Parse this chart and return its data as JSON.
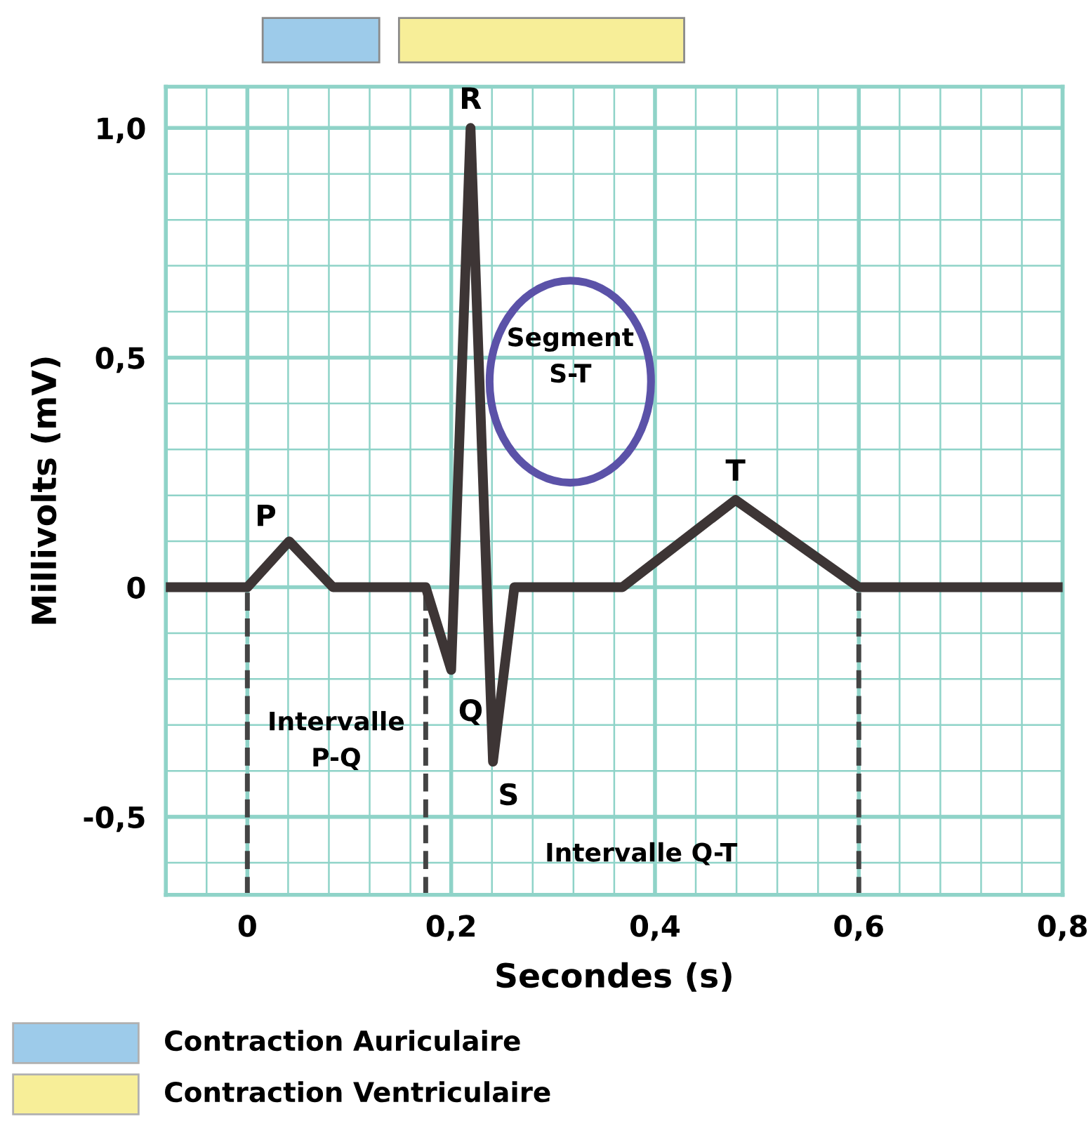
{
  "chart_data": {
    "type": "line",
    "xlabel": "Secondes (s)",
    "ylabel": "Millivolts (mV)",
    "x": [
      -0.08,
      0.0,
      0.041,
      0.084,
      0.175,
      0.2,
      0.219,
      0.241,
      0.262,
      0.368,
      0.479,
      0.6,
      0.8
    ],
    "series": [
      {
        "color": "#3d3535",
        "values": [
          0,
          0,
          0.1,
          0,
          0,
          -0.18,
          1.0,
          -0.38,
          0,
          0,
          0.19,
          0,
          0
        ]
      }
    ],
    "xlim": [
      -0.08,
      0.8
    ],
    "ylim": [
      -0.67,
      1.09
    ],
    "xticks": [
      0,
      {
        "value": 0.2,
        "label": "0,2"
      },
      {
        "value": 0.4,
        "label": "0,4"
      },
      {
        "value": 0.6,
        "label": "0,6"
      },
      {
        "value": 0.8,
        "label": "0,8"
      }
    ],
    "yticks": [
      {
        "value": -0.5,
        "label": "-0,5"
      },
      0,
      {
        "value": 0.5,
        "label": "0,5"
      },
      {
        "value": 1.0,
        "label": "1,0"
      }
    ],
    "grid": true,
    "marker": "none",
    "line_style": "solid",
    "ref_lines": [
      {
        "axis": "x",
        "value": 0.0,
        "label": null,
        "line_style": "dashed"
      },
      {
        "axis": "x",
        "value": 0.175,
        "label": null,
        "line_style": "dashed"
      },
      {
        "axis": "x",
        "value": 0.6,
        "label": null,
        "line_style": "dashed"
      }
    ],
    "annotations": [
      {
        "text": "P",
        "x": 0.041,
        "y": 0.1
      },
      {
        "text": "Q",
        "x": 0.2,
        "y": -0.18
      },
      {
        "text": "R",
        "x": 0.219,
        "y": 1.0
      },
      {
        "text": "S",
        "x": 0.241,
        "y": -0.38
      },
      {
        "text": "T",
        "x": 0.479,
        "y": 0.19
      },
      "Segment\nS-T",
      "Intervalle\nP-Q",
      "Intervalle Q-T",
      "Contraction Auriculaire",
      "Contraction Ventriculaire"
    ]
  }
}
